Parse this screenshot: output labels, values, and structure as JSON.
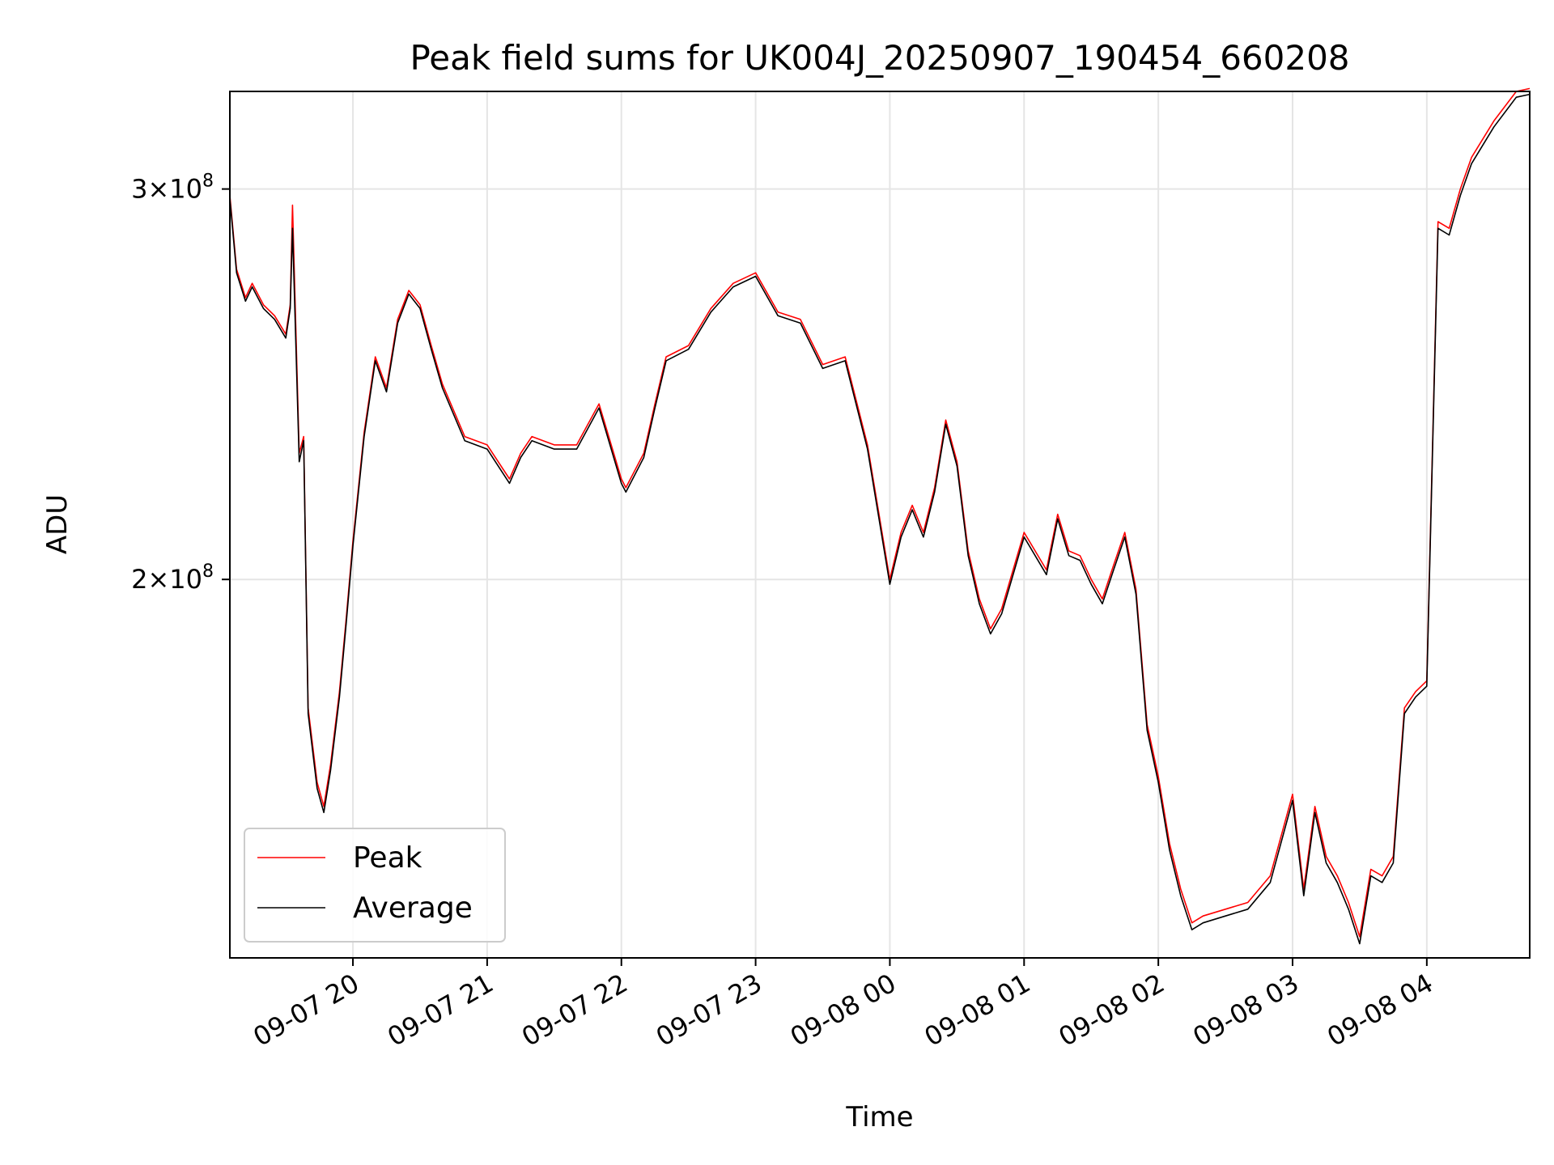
{
  "chart_data": {
    "type": "line",
    "title": "Peak field sums for UK004J_20250907_190454_660208",
    "xlabel": "Time",
    "ylabel": "ADU",
    "y_scale": "log",
    "ylim": [
      135000000,
      332000000
    ],
    "xlim": [
      "2025-09-07 19:05",
      "2025-09-08 04:46"
    ],
    "x_tick_labels": [
      "09-07 20",
      "09-07 21",
      "09-07 22",
      "09-07 23",
      "09-08 00",
      "09-08 01",
      "09-08 02",
      "09-08 03",
      "09-08 04"
    ],
    "x_ticks": [
      "2025-09-07 20:00",
      "2025-09-07 21:00",
      "2025-09-07 22:00",
      "2025-09-07 23:00",
      "2025-09-08 00:00",
      "2025-09-08 01:00",
      "2025-09-08 02:00",
      "2025-09-08 03:00",
      "2025-09-08 04:00"
    ],
    "y_ticks": [
      {
        "value": 200000000,
        "mantissa": "2",
        "exponent": "8"
      },
      {
        "value": 300000000,
        "mantissa": "3",
        "exponent": "8"
      }
    ],
    "grid": true,
    "legend_position": "lower-left",
    "x": [
      "2025-09-07 19:05",
      "2025-09-07 19:08",
      "2025-09-07 19:12",
      "2025-09-07 19:15",
      "2025-09-07 19:20",
      "2025-09-07 19:25",
      "2025-09-07 19:30",
      "2025-09-07 19:32",
      "2025-09-07 19:33",
      "2025-09-07 19:36",
      "2025-09-07 19:38",
      "2025-09-07 19:40",
      "2025-09-07 19:44",
      "2025-09-07 19:47",
      "2025-09-07 19:50",
      "2025-09-07 19:54",
      "2025-09-07 19:57",
      "2025-09-07 20:00",
      "2025-09-07 20:05",
      "2025-09-07 20:10",
      "2025-09-07 20:15",
      "2025-09-07 20:20",
      "2025-09-07 20:25",
      "2025-09-07 20:30",
      "2025-09-07 20:35",
      "2025-09-07 20:40",
      "2025-09-07 20:50",
      "2025-09-07 21:00",
      "2025-09-07 21:10",
      "2025-09-07 21:15",
      "2025-09-07 21:20",
      "2025-09-07 21:30",
      "2025-09-07 21:40",
      "2025-09-07 21:50",
      "2025-09-07 22:00",
      "2025-09-07 22:02",
      "2025-09-07 22:10",
      "2025-09-07 22:15",
      "2025-09-07 22:20",
      "2025-09-07 22:30",
      "2025-09-07 22:40",
      "2025-09-07 22:50",
      "2025-09-07 23:00",
      "2025-09-07 23:10",
      "2025-09-07 23:20",
      "2025-09-07 23:30",
      "2025-09-07 23:40",
      "2025-09-07 23:50",
      "2025-09-08 00:00",
      "2025-09-08 00:05",
      "2025-09-08 00:10",
      "2025-09-08 00:15",
      "2025-09-08 00:20",
      "2025-09-08 00:25",
      "2025-09-08 00:30",
      "2025-09-08 00:35",
      "2025-09-08 00:40",
      "2025-09-08 00:45",
      "2025-09-08 00:50",
      "2025-09-08 01:00",
      "2025-09-08 01:10",
      "2025-09-08 01:15",
      "2025-09-08 01:20",
      "2025-09-08 01:25",
      "2025-09-08 01:30",
      "2025-09-08 01:35",
      "2025-09-08 01:40",
      "2025-09-08 01:45",
      "2025-09-08 01:50",
      "2025-09-08 01:55",
      "2025-09-08 02:00",
      "2025-09-08 02:05",
      "2025-09-08 02:10",
      "2025-09-08 02:15",
      "2025-09-08 02:20",
      "2025-09-08 02:30",
      "2025-09-08 02:40",
      "2025-09-08 02:50",
      "2025-09-08 03:00",
      "2025-09-08 03:05",
      "2025-09-08 03:10",
      "2025-09-08 03:15",
      "2025-09-08 03:20",
      "2025-09-08 03:25",
      "2025-09-08 03:30",
      "2025-09-08 03:35",
      "2025-09-08 03:40",
      "2025-09-08 03:45",
      "2025-09-08 03:50",
      "2025-09-08 03:55",
      "2025-09-08 04:00",
      "2025-09-08 04:05",
      "2025-09-08 04:10",
      "2025-09-08 04:15",
      "2025-09-08 04:20",
      "2025-09-08 04:30",
      "2025-09-08 04:40",
      "2025-09-08 04:46"
    ],
    "series": [
      {
        "name": "Peak",
        "color": "#ff0000",
        "values": [
          298,
          276,
          268,
          272,
          266,
          263,
          258,
          266,
          295,
          228,
          232,
          175,
          162,
          158,
          165,
          178,
          192,
          208,
          233,
          252,
          244,
          262,
          270,
          266,
          255,
          245,
          232,
          230,
          222,
          228,
          232,
          230,
          230,
          240,
          222,
          220,
          228,
          240,
          252,
          255,
          265,
          272,
          275,
          264,
          262,
          250,
          252,
          230,
          200,
          210,
          216,
          210,
          220,
          236,
          226,
          206,
          196,
          190,
          194,
          210,
          202,
          214,
          206,
          205,
          200,
          196,
          203,
          210,
          198,
          172,
          163,
          152,
          145,
          140,
          141,
          142,
          143,
          147,
          160,
          145,
          158,
          150,
          147,
          143,
          138,
          148,
          147,
          150,
          175,
          178,
          180,
          290,
          288,
          300,
          310,
          322,
          332,
          333
        ]
      },
      {
        "name": "Average",
        "color": "#000000",
        "values": [
          297,
          275,
          267,
          271,
          265,
          262,
          257,
          265,
          288,
          226,
          231,
          174,
          161,
          157,
          164,
          177,
          191,
          207,
          232,
          251,
          243,
          261,
          269,
          265,
          254,
          244,
          231,
          229,
          221,
          227,
          231,
          229,
          229,
          239,
          221,
          219,
          227,
          239,
          251,
          254,
          264,
          271,
          274,
          263,
          261,
          249,
          251,
          229,
          199,
          209,
          215,
          209,
          219,
          235,
          225,
          205,
          195,
          189,
          193,
          209,
          201,
          213,
          205,
          204,
          199,
          195,
          202,
          209,
          197,
          171,
          162,
          151,
          144,
          139,
          140,
          141,
          142,
          146,
          159,
          144,
          157,
          149,
          146,
          142,
          137,
          147,
          146,
          149,
          174,
          177,
          179,
          288,
          286,
          298,
          308,
          320,
          330,
          331
        ]
      }
    ],
    "y_unit_factor": 1000000
  }
}
